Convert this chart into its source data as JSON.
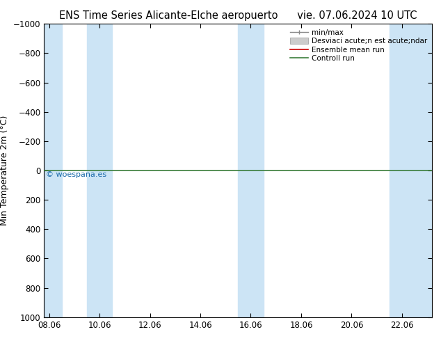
{
  "title": "ENS Time Series Alicante-Elche aeropuerto",
  "title_right": "vie. 07.06.2024 10 UTC",
  "ylabel": "Min Temperature 2m (°C)",
  "xlabel": "",
  "ylim_bottom": 1000,
  "ylim_top": -1000,
  "yticks": [
    -1000,
    -800,
    -600,
    -400,
    -200,
    0,
    200,
    400,
    600,
    800,
    1000
  ],
  "xtick_labels": [
    "08.06",
    "10.06",
    "12.06",
    "14.06",
    "16.06",
    "18.06",
    "20.06",
    "22.06"
  ],
  "xtick_positions": [
    0,
    2,
    4,
    6,
    8,
    10,
    12,
    14
  ],
  "xlim": [
    -0.2,
    15.2
  ],
  "bg_color": "#ffffff",
  "band_color": "#cce4f5",
  "band_positions": [
    [
      -0.2,
      0.5
    ],
    [
      1.5,
      2.5
    ],
    [
      7.5,
      8.5
    ],
    [
      13.5,
      15.2
    ]
  ],
  "green_line_y": 0,
  "green_line_color": "#3a7d3a",
  "red_line_color": "#cc0000",
  "watermark": "© woespana.es",
  "watermark_color": "#1a6aaa",
  "legend_label_minmax": "min/max",
  "legend_label_std": "Desviaci acute;n est acute;ndar",
  "legend_label_ensemble": "Ensemble mean run",
  "legend_label_control": "Controll run",
  "title_fontsize": 10.5,
  "tick_fontsize": 8.5,
  "ylabel_fontsize": 9
}
